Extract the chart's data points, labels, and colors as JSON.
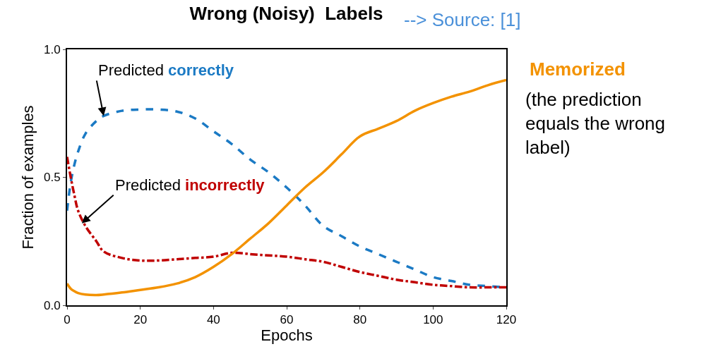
{
  "chart_data": {
    "type": "line",
    "title": "Wrong (Noisy)  Labels",
    "xlabel": "Epochs",
    "ylabel": "Fraction of examples",
    "xlim": [
      0,
      120
    ],
    "xticks": [
      0,
      20,
      40,
      60,
      80,
      100,
      120
    ],
    "ylim": [
      0,
      1
    ],
    "yticks": [
      {
        "value": 0,
        "label": "0.0"
      },
      {
        "value": 0.5,
        "label": "0.5"
      },
      {
        "value": 1,
        "label": "1.0"
      }
    ],
    "marker": "none",
    "x": [
      0,
      1,
      2,
      3,
      5,
      8,
      10,
      15,
      20,
      25,
      30,
      35,
      40,
      45,
      50,
      55,
      60,
      65,
      70,
      75,
      80,
      85,
      90,
      95,
      100,
      105,
      110,
      115,
      120
    ],
    "series": [
      {
        "color": "#1b7ac4",
        "line_style": "dashed",
        "values": [
          0.37,
          0.48,
          0.55,
          0.6,
          0.67,
          0.72,
          0.74,
          0.76,
          0.765,
          0.765,
          0.757,
          0.73,
          0.68,
          0.63,
          0.57,
          0.52,
          0.46,
          0.39,
          0.31,
          0.27,
          0.23,
          0.2,
          0.17,
          0.14,
          0.11,
          0.095,
          0.08,
          0.075,
          0.07
        ]
      },
      {
        "color": "#c00000",
        "line_style": "dashdot",
        "values": [
          0.58,
          0.5,
          0.43,
          0.37,
          0.31,
          0.25,
          0.21,
          0.185,
          0.175,
          0.175,
          0.18,
          0.185,
          0.19,
          0.205,
          0.2,
          0.195,
          0.19,
          0.18,
          0.17,
          0.15,
          0.13,
          0.115,
          0.1,
          0.09,
          0.08,
          0.075,
          0.07,
          0.07,
          0.07
        ]
      },
      {
        "color": "#f39200",
        "line_style": "solid",
        "values": [
          0.085,
          0.065,
          0.055,
          0.048,
          0.042,
          0.04,
          0.042,
          0.05,
          0.06,
          0.07,
          0.085,
          0.11,
          0.15,
          0.2,
          0.26,
          0.32,
          0.39,
          0.46,
          0.52,
          0.59,
          0.66,
          0.69,
          0.72,
          0.76,
          0.79,
          0.815,
          0.835,
          0.86,
          0.88
        ]
      }
    ],
    "annotations": [
      {
        "text": "Predicted correctly",
        "x": 10,
        "y": 0.74
      },
      {
        "text": "Predicted incorrectly",
        "x": 4,
        "y": 0.32
      },
      "--> Source: [1]",
      "Memorized",
      "(the prediction\nequals the wrong\nlabel)"
    ]
  }
}
